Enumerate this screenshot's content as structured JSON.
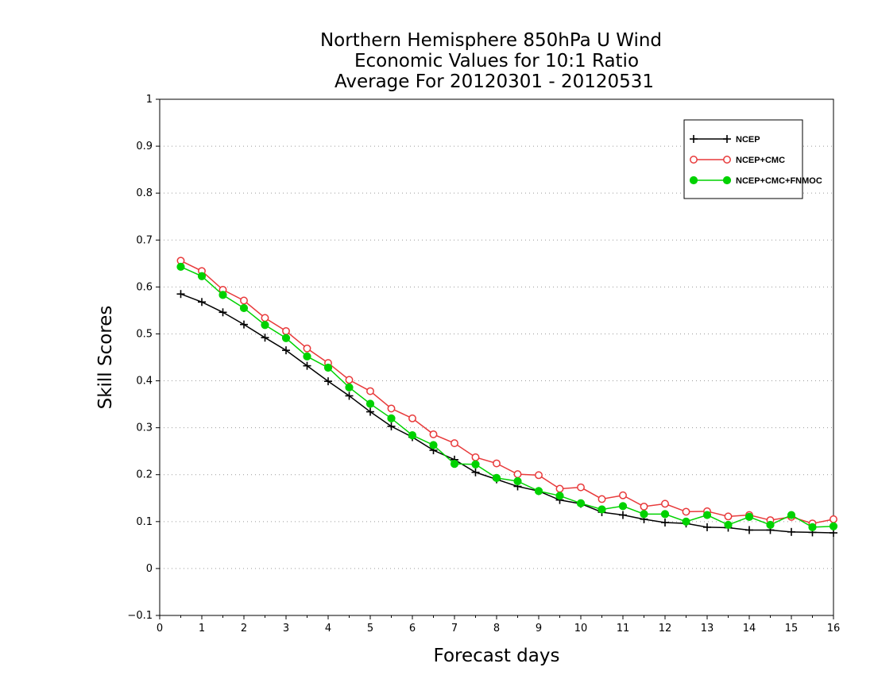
{
  "chart_data": {
    "type": "line",
    "title_lines": [
      "Northern Hemisphere 850hPa U Wind",
      "Economic Values for 10:1 Ratio",
      "Average For 20120301 - 20120531"
    ],
    "xlabel": "Forecast days",
    "ylabel": "Skill Scores",
    "xlim": [
      0,
      16
    ],
    "ylim": [
      -0.1,
      1
    ],
    "x_ticks": [
      "0",
      "1",
      "2",
      "3",
      "4",
      "5",
      "6",
      "7",
      "8",
      "9",
      "10",
      "11",
      "12",
      "13",
      "14",
      "15",
      "16"
    ],
    "y_ticks": [
      "−0.1",
      "0",
      "0.1",
      "0.2",
      "0.3",
      "0.4",
      "0.5",
      "0.6",
      "0.7",
      "0.8",
      "0.9",
      "1"
    ],
    "y_tick_values": [
      -0.1,
      0,
      0.1,
      0.2,
      0.3,
      0.4,
      0.5,
      0.6,
      0.7,
      0.8,
      0.9,
      1
    ],
    "grid": "horizontal dotted",
    "legend_position": "top-right",
    "x": [
      0.5,
      1,
      1.5,
      2,
      2.5,
      3,
      3.5,
      4,
      4.5,
      5,
      5.5,
      6,
      6.5,
      7,
      7.5,
      8,
      8.5,
      9,
      9.5,
      10,
      10.5,
      11,
      11.5,
      12,
      12.5,
      13,
      13.5,
      14,
      14.5,
      15,
      15.5,
      16
    ],
    "series": [
      {
        "name": "NCEP",
        "color": "#000000",
        "marker": "plus",
        "values": [
          0.585,
          0.568,
          0.546,
          0.52,
          0.492,
          0.465,
          0.432,
          0.399,
          0.368,
          0.334,
          0.303,
          0.28,
          0.252,
          0.232,
          0.205,
          0.19,
          0.175,
          0.165,
          0.146,
          0.138,
          0.12,
          0.114,
          0.105,
          0.098,
          0.096,
          0.088,
          0.087,
          0.082,
          0.082,
          0.078,
          0.077,
          0.076
        ]
      },
      {
        "name": "NCEP+CMC",
        "color": "#e8393a",
        "marker": "open-circle",
        "values": [
          0.656,
          0.634,
          0.594,
          0.571,
          0.534,
          0.506,
          0.469,
          0.438,
          0.402,
          0.378,
          0.341,
          0.32,
          0.286,
          0.267,
          0.237,
          0.224,
          0.201,
          0.199,
          0.17,
          0.173,
          0.148,
          0.156,
          0.132,
          0.138,
          0.121,
          0.122,
          0.111,
          0.114,
          0.103,
          0.11,
          0.096,
          0.105
        ]
      },
      {
        "name": "NCEP+CMC+FNMOC",
        "color": "#00d200",
        "marker": "filled-circle",
        "values": [
          0.643,
          0.623,
          0.583,
          0.555,
          0.519,
          0.491,
          0.452,
          0.428,
          0.386,
          0.351,
          0.32,
          0.284,
          0.263,
          0.223,
          0.222,
          0.193,
          0.186,
          0.165,
          0.155,
          0.139,
          0.126,
          0.133,
          0.116,
          0.116,
          0.1,
          0.114,
          0.093,
          0.11,
          0.093,
          0.114,
          0.088,
          0.09
        ]
      }
    ]
  }
}
